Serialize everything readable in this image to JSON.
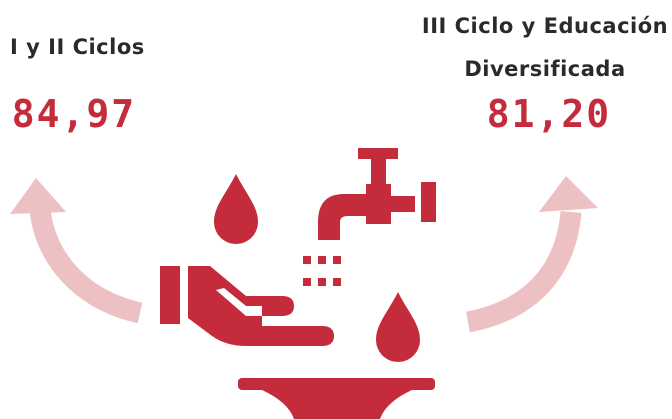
{
  "left": {
    "label": "I y II Ciclos",
    "value": "84,97"
  },
  "right": {
    "label_line1": "III Ciclo y Educación",
    "label_line2": "Diversificada",
    "value": "81,20"
  },
  "colors": {
    "accent": "#c42b3b",
    "arrow": "#edc1c3",
    "text": "#2a2a2a"
  },
  "icons": [
    "water-drop-icon",
    "faucet-icon",
    "washing-hand-icon",
    "sink-basin-icon",
    "curved-arrow-icon"
  ]
}
